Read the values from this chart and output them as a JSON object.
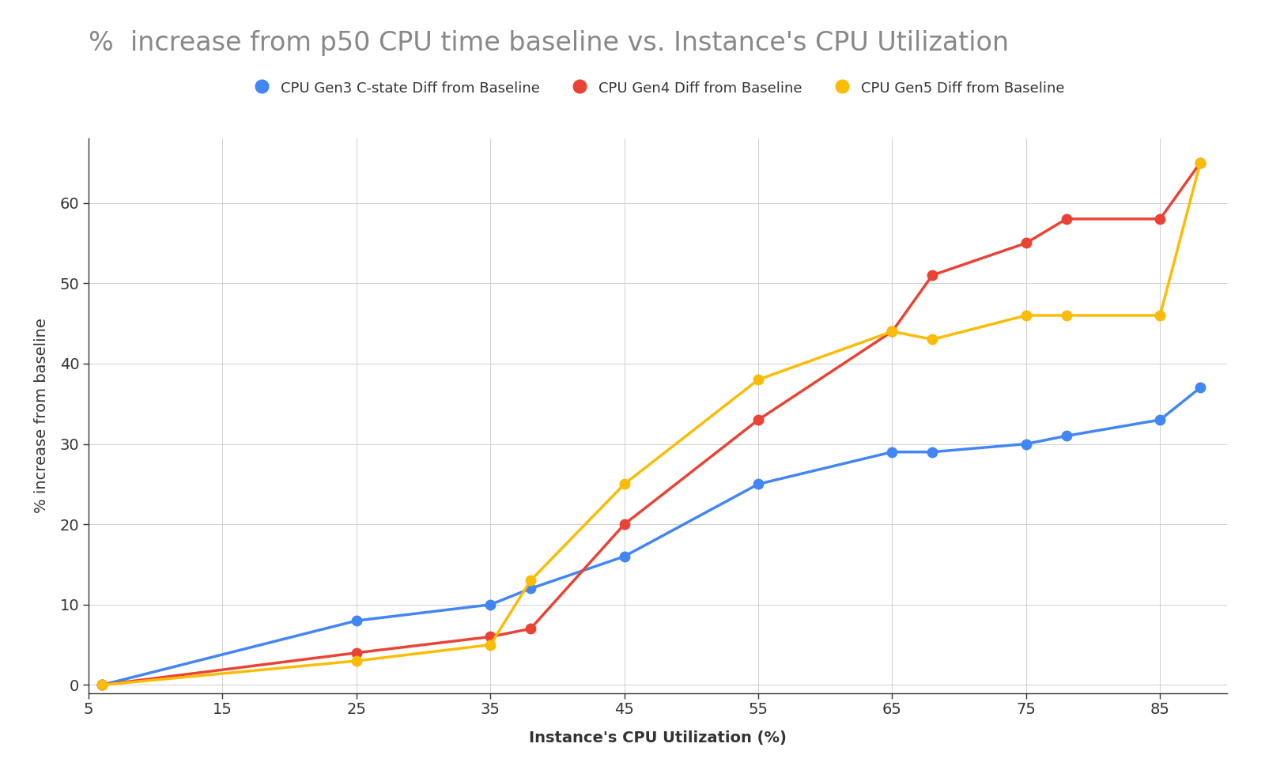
{
  "title": "%  increase from p50 CPU time baseline vs. Instance's CPU Utilization",
  "xlabel": "Instance's CPU Utilization (%)",
  "ylabel": "% increase from baseline",
  "background_color": "#ffffff",
  "plot_bg_color": "#ffffff",
  "grid_color": "#d0d0d0",
  "series": [
    {
      "label": "CPU Gen3 C-state Diff from Baseline",
      "color": "#4285F4",
      "x": [
        6,
        25,
        35,
        38,
        45,
        55,
        65,
        68,
        75,
        78,
        85,
        88
      ],
      "y": [
        0,
        8,
        10,
        12,
        16,
        25,
        29,
        29,
        30,
        31,
        33,
        37
      ]
    },
    {
      "label": "CPU Gen4 Diff from Baseline",
      "color": "#EA4335",
      "x": [
        6,
        25,
        35,
        38,
        45,
        55,
        65,
        68,
        75,
        78,
        85,
        88
      ],
      "y": [
        0,
        4,
        6,
        7,
        20,
        33,
        44,
        51,
        55,
        58,
        58,
        65
      ]
    },
    {
      "label": "CPU Gen5 Diff from Baseline",
      "color": "#FBBC04",
      "x": [
        6,
        25,
        35,
        38,
        45,
        55,
        65,
        68,
        75,
        78,
        85,
        88
      ],
      "y": [
        0,
        3,
        5,
        13,
        25,
        38,
        44,
        43,
        46,
        46,
        46,
        65
      ]
    }
  ],
  "xlim": [
    5,
    90
  ],
  "ylim": [
    -1,
    68
  ],
  "xticks": [
    5,
    15,
    25,
    35,
    45,
    55,
    65,
    75,
    85
  ],
  "yticks": [
    0,
    10,
    20,
    30,
    40,
    50,
    60
  ],
  "title_fontsize": 24,
  "axis_label_fontsize": 14,
  "tick_fontsize": 14,
  "legend_fontsize": 13,
  "marker_size": 9,
  "line_width": 2.5
}
